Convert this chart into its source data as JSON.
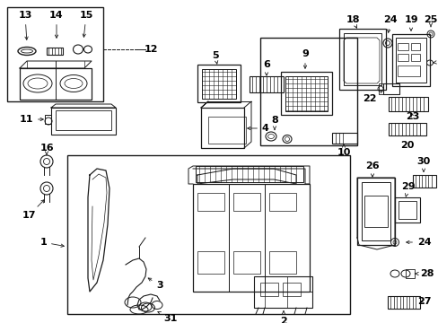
{
  "fig_width": 4.89,
  "fig_height": 3.6,
  "dpi": 100,
  "bg_color": "#ffffff",
  "lc": "#1a1a1a",
  "tc": "#000000"
}
